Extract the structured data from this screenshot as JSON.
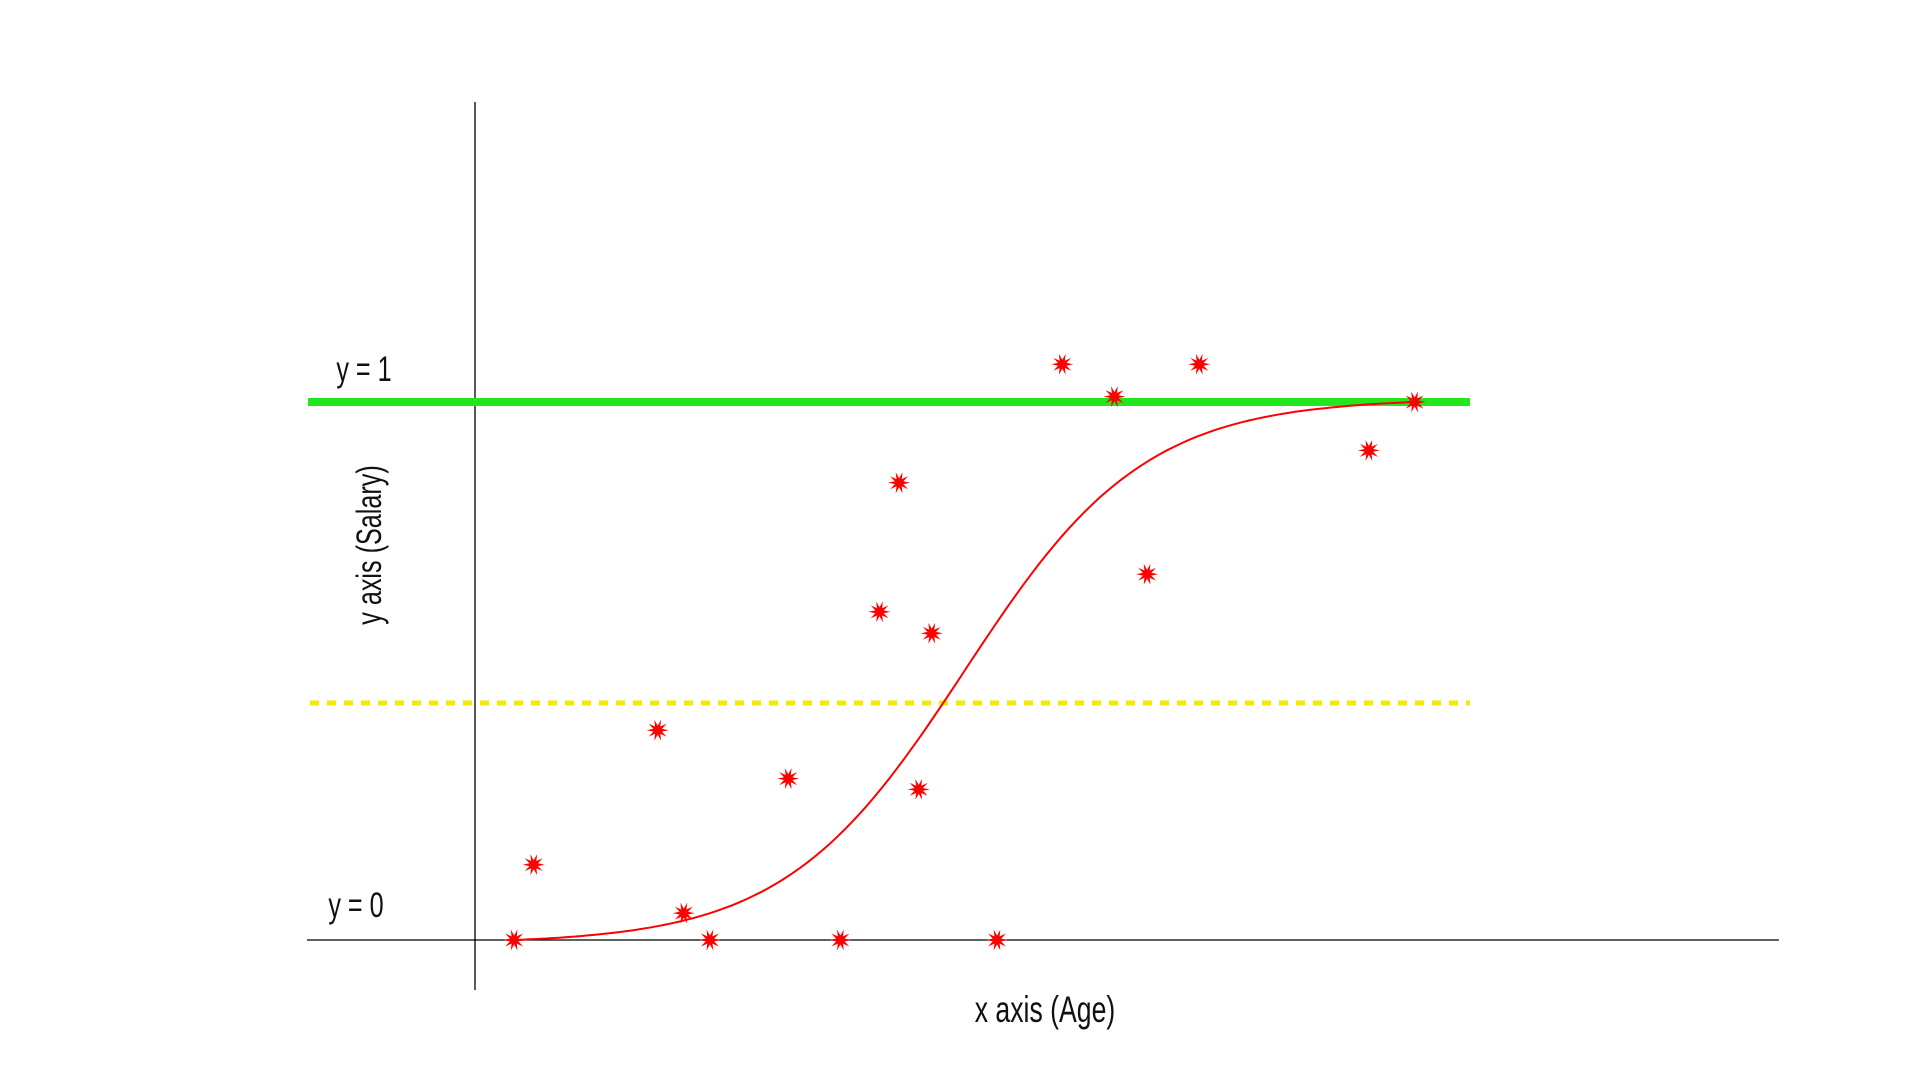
{
  "labels": {
    "y_one": "y = 1",
    "y_zero": "y = 0",
    "y_axis": "y axis (Salary)",
    "x_axis": "x axis (Age)"
  },
  "colors": {
    "axis": "#000000",
    "y_one_line": "#22e61e",
    "threshold_line": "#f2ea00",
    "sigmoid": "#ff0000",
    "points": "#ff0000"
  },
  "chart_data": {
    "type": "scatter",
    "xlabel": "x axis (Age)",
    "ylabel": "y axis (Salary)",
    "reference_lines": [
      {
        "y": 1,
        "label": "y = 1",
        "style": "solid",
        "color": "#22e61e"
      },
      {
        "y": 0.5,
        "label": "",
        "style": "dotted",
        "color": "#f2ea00"
      },
      {
        "y": 0,
        "label": "y = 0",
        "style": "axis",
        "color": "#000000"
      }
    ],
    "curve": {
      "type": "sigmoid",
      "x_start": 0.03,
      "x_end": 0.72,
      "color": "#ff0000"
    },
    "points": [
      {
        "x": 0.03,
        "y": 0.0
      },
      {
        "x": 0.045,
        "y": 0.14
      },
      {
        "x": 0.14,
        "y": 0.39
      },
      {
        "x": 0.16,
        "y": 0.05
      },
      {
        "x": 0.18,
        "y": 0.0
      },
      {
        "x": 0.24,
        "y": 0.3
      },
      {
        "x": 0.28,
        "y": 0.0
      },
      {
        "x": 0.31,
        "y": 0.61
      },
      {
        "x": 0.325,
        "y": 0.85
      },
      {
        "x": 0.34,
        "y": 0.28
      },
      {
        "x": 0.35,
        "y": 0.57
      },
      {
        "x": 0.4,
        "y": 0.0
      },
      {
        "x": 0.45,
        "y": 1.07
      },
      {
        "x": 0.49,
        "y": 1.01
      },
      {
        "x": 0.515,
        "y": 0.68
      },
      {
        "x": 0.555,
        "y": 1.07
      },
      {
        "x": 0.685,
        "y": 0.91
      },
      {
        "x": 0.72,
        "y": 1.0
      }
    ]
  }
}
